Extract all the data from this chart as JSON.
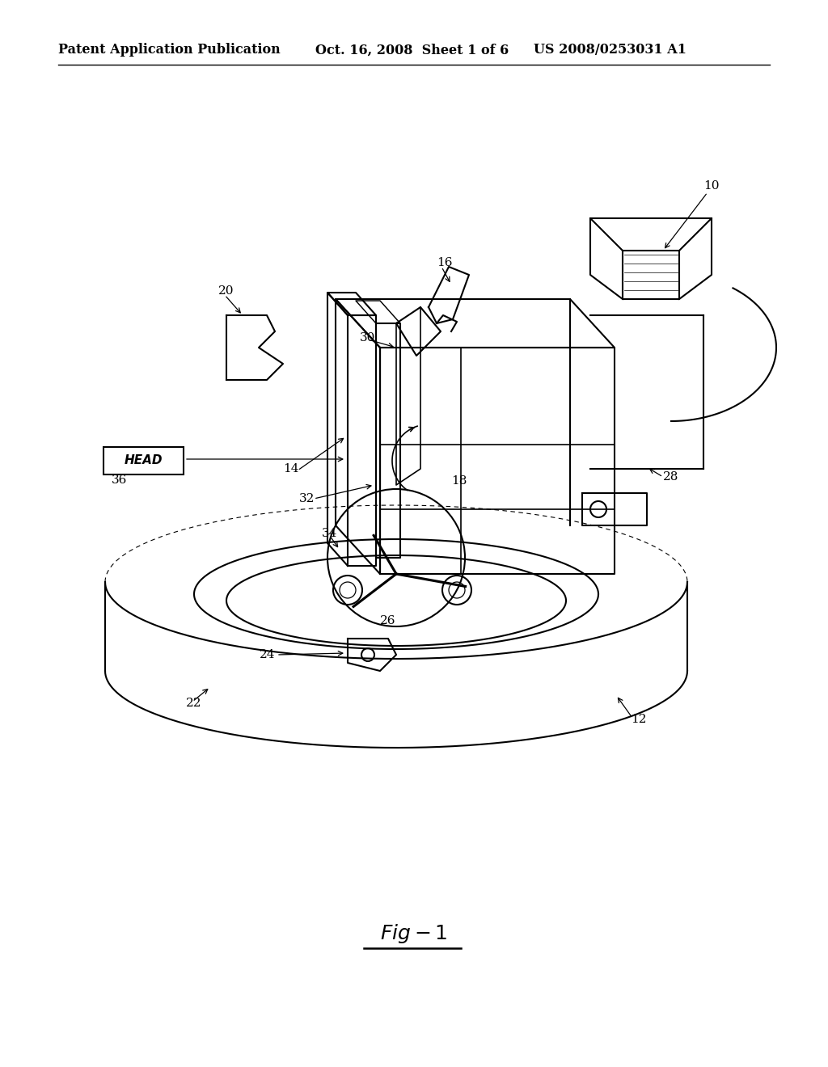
{
  "background_color": "#ffffff",
  "header_left": "Patent Application Publication",
  "header_center": "Oct. 16, 2008  Sheet 1 of 6",
  "header_right": "US 2008/0253031 A1",
  "header_fontsize": 11.5,
  "figure_label": "Fig-1",
  "figure_label_fontsize": 17,
  "label_fontsize": 11,
  "page_width": 10.24,
  "page_height": 13.2,
  "dpi": 100
}
